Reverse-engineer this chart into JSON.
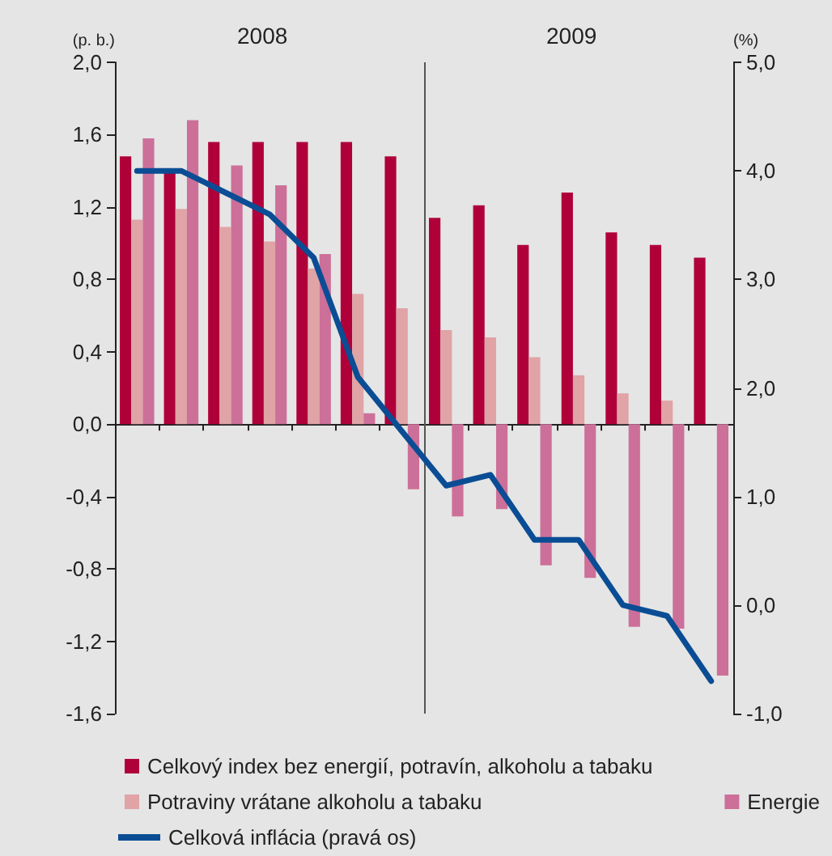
{
  "chart_data": {
    "type": "bar",
    "ylabel": "(p. b.)",
    "y2label": "(%)",
    "annotations": [
      "2008",
      "2009"
    ],
    "categories": [
      null,
      null,
      null,
      null,
      null,
      null,
      null,
      null,
      null,
      null,
      null,
      null,
      null,
      null
    ],
    "series": [
      {
        "name": "Celkový index bez energií, potravín, alkoholu a tabaku",
        "color": "#b0003a",
        "values": [
          1.48,
          1.4,
          1.56,
          1.56,
          1.56,
          1.56,
          1.48,
          1.14,
          1.21,
          0.99,
          1.28,
          1.06,
          0.99,
          0.92
        ]
      },
      {
        "name": "Potraviny vrátane alkoholu a tabaku",
        "color": "#e0a3a6",
        "values": [
          1.13,
          1.19,
          1.09,
          1.01,
          0.86,
          0.72,
          0.64,
          0.52,
          0.48,
          0.37,
          0.27,
          0.17,
          0.13,
          null
        ]
      },
      {
        "name": "Energie",
        "color": "#cc7099",
        "values": [
          1.58,
          1.68,
          1.43,
          1.32,
          0.94,
          0.06,
          -0.36,
          -0.51,
          -0.47,
          -0.78,
          -0.85,
          -1.12,
          -1.13,
          -1.39
        ]
      },
      {
        "name": "Celková inflácia (pravá os)",
        "type": "line",
        "axis": "y2",
        "color": "#0a4d94",
        "line_style": "solid",
        "values": [
          4.0,
          4.0,
          3.8,
          3.6,
          3.2,
          2.1,
          1.6,
          1.1,
          1.2,
          0.6,
          0.6,
          0.0,
          -0.1,
          -0.7
        ]
      }
    ],
    "ylim": [
      -1.6,
      2.0
    ],
    "yticks": [
      {
        "value": -1.6,
        "label": "-1,6"
      },
      {
        "value": -1.2,
        "label": "-1,2"
      },
      {
        "value": -0.8,
        "label": "-0,8"
      },
      {
        "value": -0.4,
        "label": "-0,4"
      },
      {
        "value": 0,
        "label": "0,0"
      },
      {
        "value": 0.4,
        "label": "0,4"
      },
      {
        "value": 0.8,
        "label": "0,8"
      },
      {
        "value": 1.2,
        "label": "1,2"
      },
      {
        "value": 1.6,
        "label": "1,6"
      },
      {
        "value": 2.0,
        "label": "2,0"
      }
    ],
    "y2lim": [
      -1.0,
      5.0
    ],
    "y2ticks": [
      {
        "value": -1,
        "label": "-1,0"
      },
      {
        "value": 0,
        "label": "0,0"
      },
      {
        "value": 1,
        "label": "1,0"
      },
      {
        "value": 2,
        "label": "2,0"
      },
      {
        "value": 3,
        "label": "3,0"
      },
      {
        "value": 4,
        "label": "4,0"
      },
      {
        "value": 5,
        "label": "5,0"
      }
    ],
    "grid": false,
    "legend": "bottom",
    "marker": "none"
  }
}
